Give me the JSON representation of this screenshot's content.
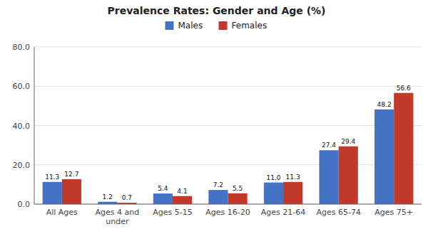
{
  "chart_data": {
    "type": "bar",
    "title": "Prevalence Rates: Gender and Age (%)",
    "categories": [
      "All Ages",
      "Ages 4 and\nunder",
      "Ages 5-15",
      "Ages 16-20",
      "Ages 21-64",
      "Ages 65-74",
      "Ages 75+"
    ],
    "series": [
      {
        "name": "Males",
        "color": "#4472C4",
        "values": [
          11.3,
          1.2,
          5.4,
          7.2,
          11.0,
          27.4,
          48.2
        ],
        "value_labels": [
          "11.3",
          "1.2",
          "5.4",
          "7.2",
          "11.0",
          "27.4",
          "48.2"
        ]
      },
      {
        "name": "Females",
        "color": "#C0392B",
        "values": [
          12.7,
          0.7,
          4.1,
          5.5,
          11.3,
          29.4,
          56.6
        ],
        "value_labels": [
          "12.7",
          "0.7",
          "4.1",
          "5.5",
          "11.3",
          "29.4",
          "56.6"
        ]
      }
    ],
    "ylim": [
      0,
      80
    ],
    "yticks": [
      {
        "value": 0,
        "label": "0.0"
      },
      {
        "value": 20,
        "label": "20.0"
      },
      {
        "value": 40,
        "label": "40.0"
      },
      {
        "value": 60,
        "label": "60.0"
      },
      {
        "value": 80,
        "label": "80.0"
      }
    ],
    "grid": true,
    "legend": "top",
    "data_labels": true
  }
}
